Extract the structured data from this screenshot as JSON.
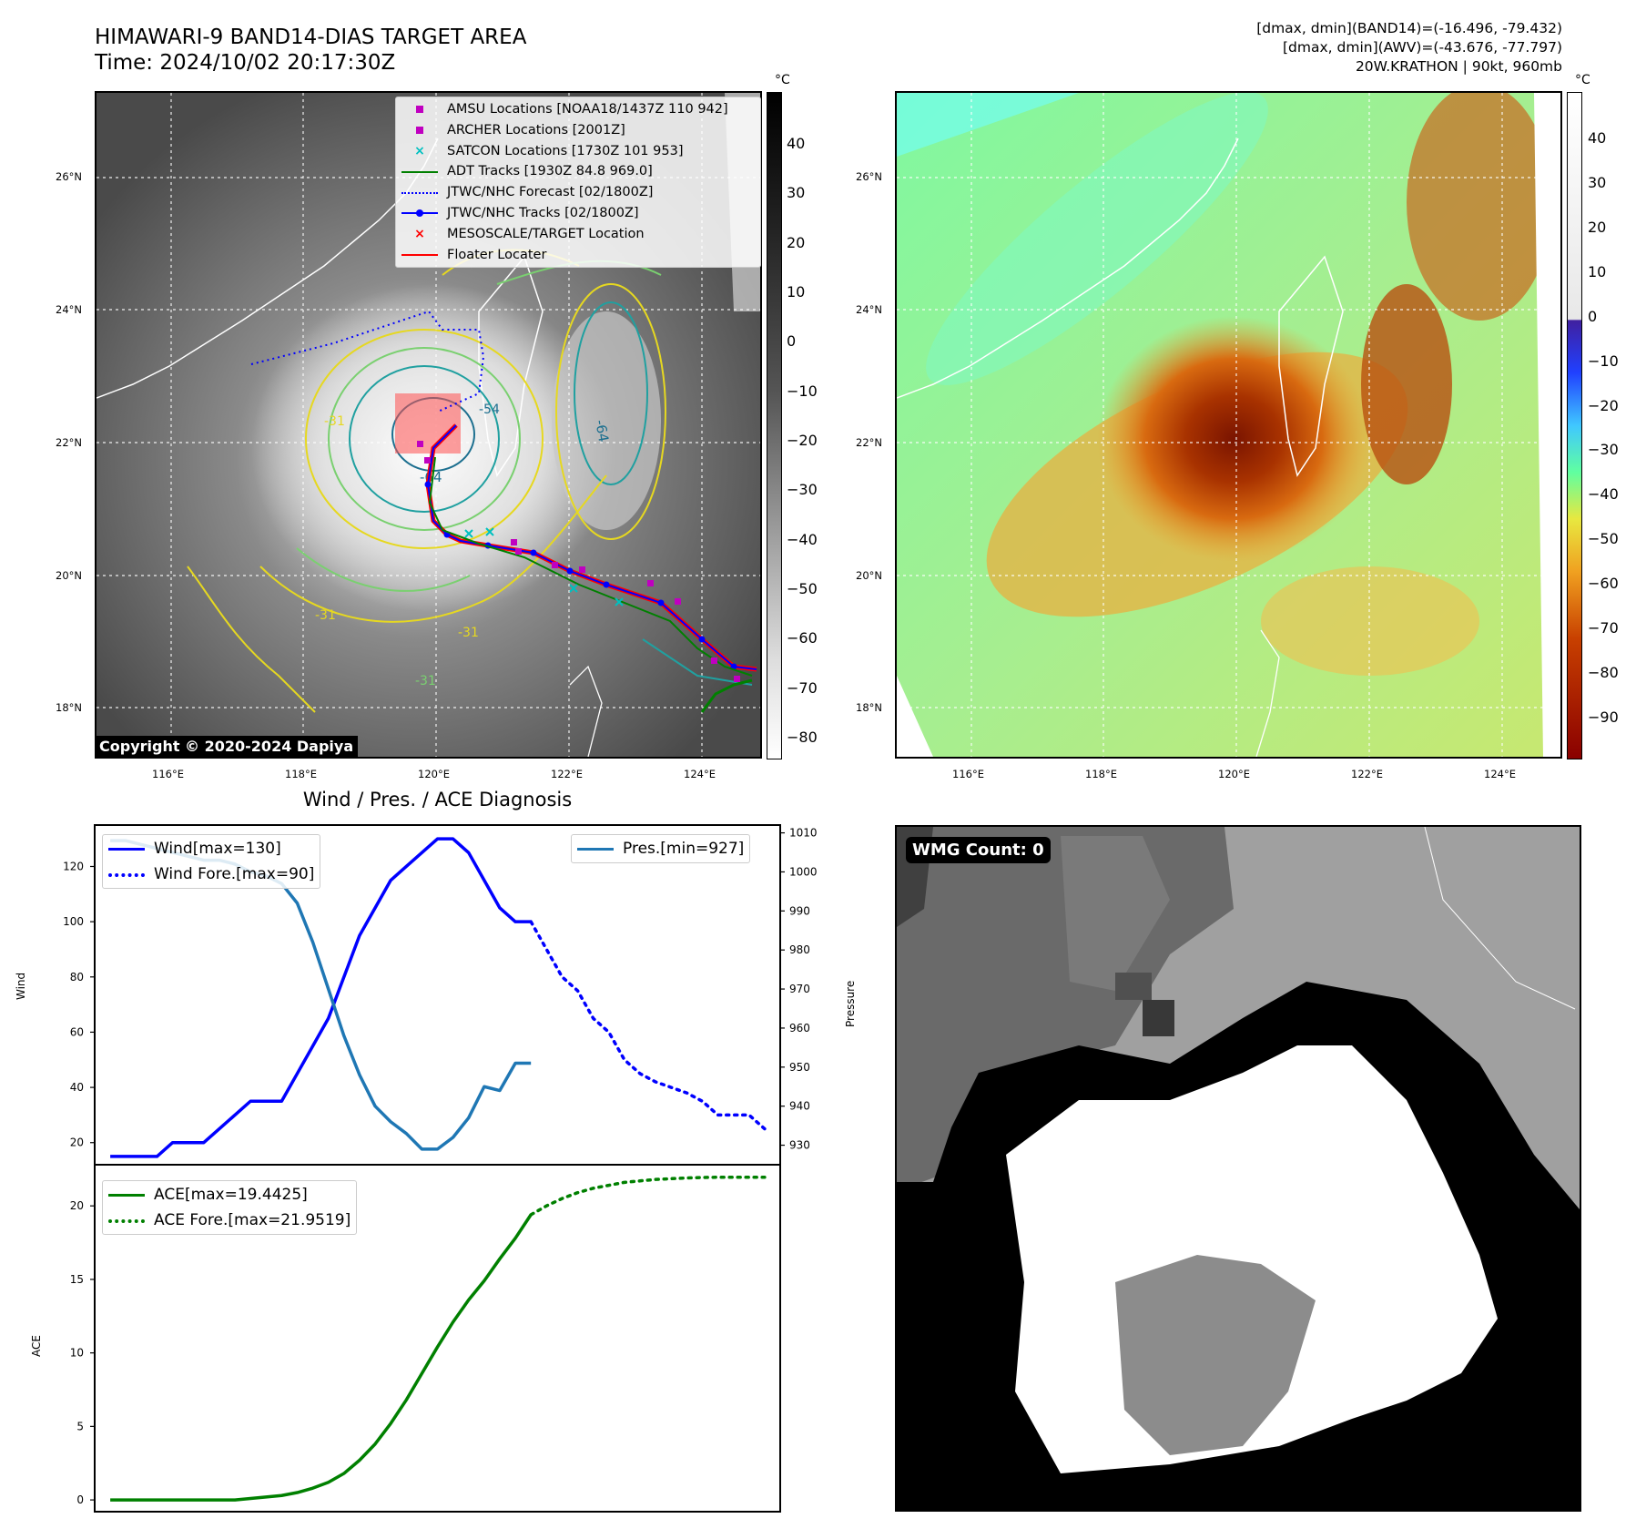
{
  "header": {
    "title_line1": "HIMAWARI-9 BAND14-DIAS TARGET AREA",
    "title_line2": "Time: 2024/10/02 20:17:30Z",
    "info_line1": "[dmax, dmin](BAND14)=(-16.496, -79.432)",
    "info_line2": "[dmax, dmin](AWV)=(-43.676, -77.797)",
    "info_line3": "20W.KRATHON | 90kt, 960mb"
  },
  "map_axes": {
    "lat_labels": [
      "26°N",
      "24°N",
      "22°N",
      "20°N",
      "18°N"
    ],
    "lon_labels": [
      "116°E",
      "118°E",
      "120°E",
      "122°E",
      "124°E"
    ]
  },
  "colorbar_left": {
    "unit": "°C",
    "ticks": [
      "40",
      "30",
      "20",
      "10",
      "0",
      "−10",
      "−20",
      "−30",
      "−40",
      "−50",
      "−60",
      "−70",
      "−80"
    ]
  },
  "colorbar_right": {
    "unit": "°C",
    "ticks": [
      "40",
      "30",
      "20",
      "10",
      "0",
      "−10",
      "−20",
      "−30",
      "−40",
      "−50",
      "−60",
      "−70",
      "−80",
      "−90"
    ]
  },
  "map_legend": [
    {
      "label": "AMSU Locations [NOAA18/1437Z 110 942]",
      "symbol": "square",
      "color": "#c000c0"
    },
    {
      "label": "ARCHER Locations [2001Z]",
      "symbol": "square",
      "color": "#c000c0"
    },
    {
      "label": "SATCON Locations [1730Z 101 953]",
      "symbol": "x",
      "color": "#00c0c0"
    },
    {
      "label": "ADT Tracks [1930Z 84.8 969.0]",
      "symbol": "line",
      "color": "#008000"
    },
    {
      "label": "JTWC/NHC Forecast [02/1800Z]",
      "symbol": "dotted",
      "color": "#0000ff"
    },
    {
      "label": "JTWC/NHC Tracks [02/1800Z]",
      "symbol": "line-dot",
      "color": "#0000ff"
    },
    {
      "label": "MESOSCALE/TARGET Location",
      "symbol": "x",
      "color": "#ff0000"
    },
    {
      "label": "Floater Locater",
      "symbol": "line",
      "color": "#ff0000"
    }
  ],
  "contour_labels": [
    "-64",
    "-64",
    "-31",
    "-31",
    "-31",
    "-31",
    "-54"
  ],
  "copyright": "Copyright © 2020-2024 Dapiya",
  "wmg_badge": "WMG Count: 0",
  "chart_data": [
    {
      "type": "line",
      "title": "Wind / Pres. / ACE Diagnosis",
      "ylabel": "Wind",
      "ylabel_right": "Pressure",
      "ylim": [
        12,
        135
      ],
      "ylim_right": [
        925,
        1012
      ],
      "yticks": [
        20,
        40,
        60,
        80,
        100,
        120
      ],
      "yticks_right": [
        930,
        940,
        950,
        960,
        970,
        980,
        990,
        1000,
        1010
      ],
      "legend_left": [
        "Wind[max=130]",
        "Wind Fore.[max=90]"
      ],
      "legend_right": [
        "Pres.[min=927]"
      ],
      "series": [
        {
          "name": "Wind[max=130]",
          "color": "#0000ff",
          "style": "solid",
          "x": [
            0,
            6,
            12,
            18,
            24,
            30,
            36,
            42,
            48,
            54,
            60,
            66,
            72,
            78,
            84,
            90,
            96,
            102,
            108,
            114,
            120,
            126,
            132,
            138,
            144,
            150,
            156,
            162
          ],
          "y": [
            15,
            15,
            15,
            15,
            20,
            20,
            20,
            25,
            30,
            35,
            35,
            35,
            45,
            55,
            65,
            80,
            95,
            105,
            115,
            120,
            125,
            130,
            130,
            125,
            115,
            105,
            100,
            100
          ]
        },
        {
          "name": "Wind Fore.[max=90]",
          "color": "#0000ff",
          "style": "dotted",
          "x": [
            162,
            168,
            174,
            180,
            186,
            192,
            198,
            204,
            210,
            216,
            222,
            228,
            234,
            240,
            246,
            252
          ],
          "y": [
            100,
            90,
            80,
            75,
            65,
            60,
            50,
            45,
            42,
            40,
            38,
            35,
            30,
            30,
            30,
            25
          ]
        },
        {
          "name": "Pres.[min=927]",
          "color": "#1f77b4",
          "style": "solid",
          "axis": "right",
          "x": [
            0,
            6,
            12,
            18,
            24,
            30,
            36,
            42,
            48,
            54,
            60,
            66,
            72,
            78,
            84,
            90,
            96,
            102,
            108,
            114,
            120,
            126,
            132,
            138,
            144,
            150,
            156,
            162
          ],
          "y": [
            1008,
            1008,
            1007,
            1006,
            1005,
            1004,
            1003,
            1003,
            1002,
            1000,
            999,
            997,
            992,
            982,
            970,
            958,
            948,
            940,
            936,
            933,
            929,
            929,
            932,
            937,
            945,
            944,
            951,
            951
          ]
        }
      ]
    },
    {
      "type": "line",
      "ylabel": "ACE",
      "ylim": [
        -0.8,
        22.8
      ],
      "yticks": [
        0,
        5,
        10,
        15,
        20
      ],
      "legend_left": [
        "ACE[max=19.4425]",
        "ACE Fore.[max=21.9519]"
      ],
      "series": [
        {
          "name": "ACE[max=19.4425]",
          "color": "#008000",
          "style": "solid",
          "x": [
            0,
            6,
            12,
            18,
            24,
            30,
            36,
            42,
            48,
            54,
            60,
            66,
            72,
            78,
            84,
            90,
            96,
            102,
            108,
            114,
            120,
            126,
            132,
            138,
            144,
            150,
            156,
            162
          ],
          "y": [
            0,
            0,
            0,
            0,
            0,
            0,
            0,
            0,
            0,
            0.1,
            0.2,
            0.3,
            0.5,
            0.8,
            1.2,
            1.8,
            2.7,
            3.8,
            5.2,
            6.8,
            8.6,
            10.4,
            12.1,
            13.6,
            14.9,
            16.4,
            17.8,
            19.4
          ]
        },
        {
          "name": "ACE Fore.[max=21.9519]",
          "color": "#008000",
          "style": "dotted",
          "x": [
            162,
            168,
            174,
            180,
            186,
            192,
            198,
            204,
            210,
            216,
            222,
            228,
            234,
            240,
            246,
            252
          ],
          "y": [
            19.4,
            20.0,
            20.5,
            20.9,
            21.2,
            21.4,
            21.6,
            21.7,
            21.8,
            21.85,
            21.9,
            21.93,
            21.95,
            21.95,
            21.95,
            21.95
          ]
        }
      ]
    }
  ]
}
